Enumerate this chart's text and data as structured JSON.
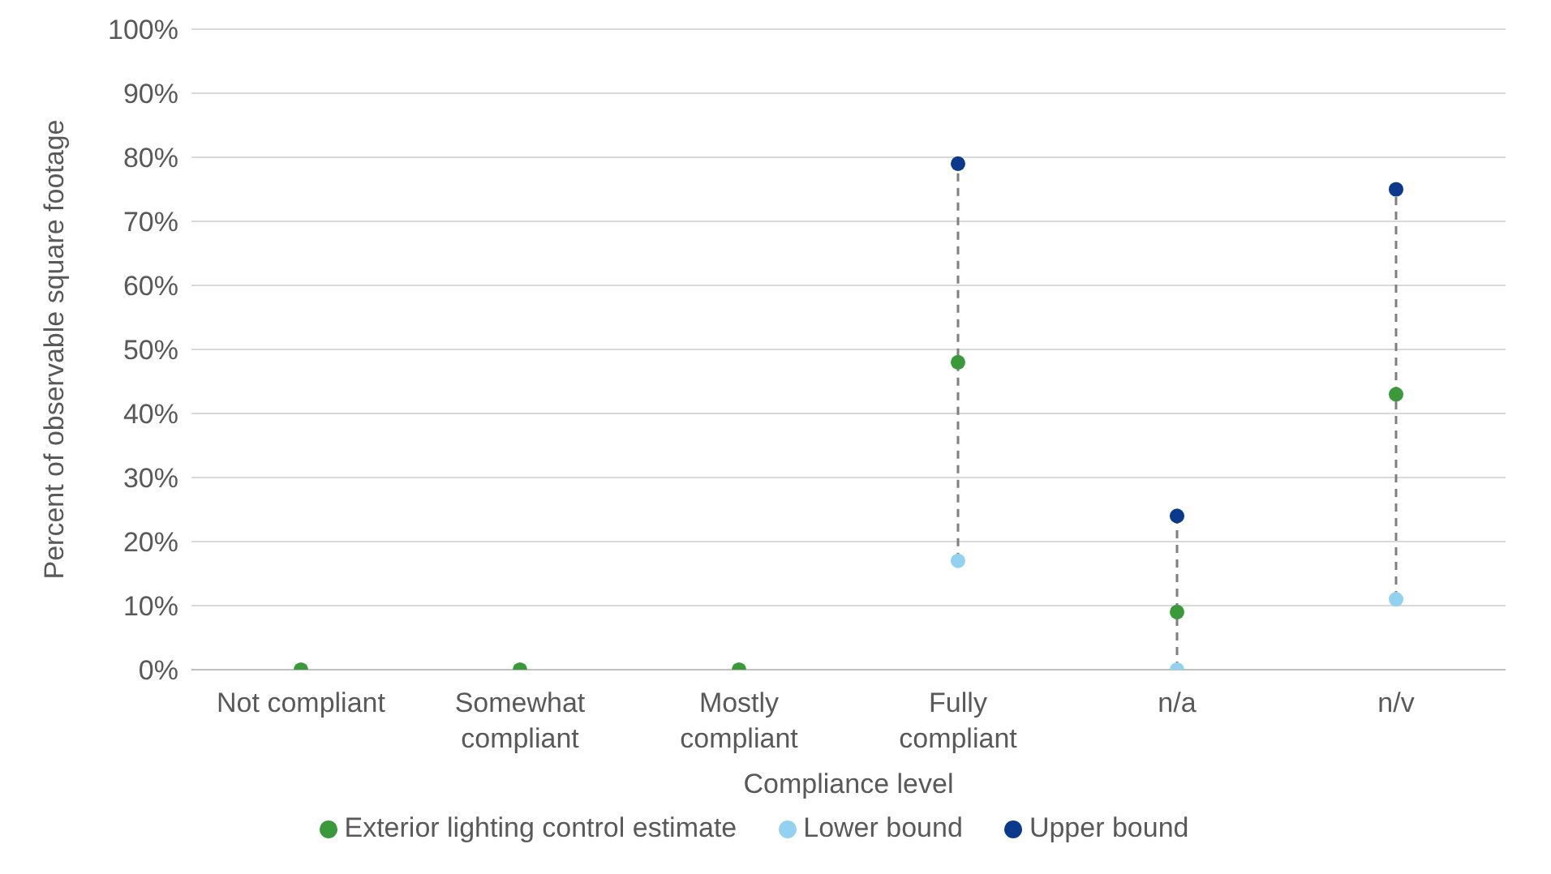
{
  "chart_data": {
    "type": "scatter",
    "xlabel": "Compliance level",
    "ylabel": "Percent of observable square footage",
    "categories": [
      "Not compliant",
      "Somewhat compliant",
      "Mostly compliant",
      "Fully compliant",
      "n/a",
      "n/v"
    ],
    "series": [
      {
        "type": "line",
        "color": "#7f7f7f",
        "line_style": "dashed",
        "marker": "none",
        "x": [
          "Fully compliant",
          "Fully compliant"
        ],
        "values": [
          17,
          79
        ]
      },
      {
        "type": "line",
        "color": "#7f7f7f",
        "line_style": "dashed",
        "marker": "none",
        "x": [
          "n/a",
          "n/a"
        ],
        "values": [
          0,
          24
        ]
      },
      {
        "type": "line",
        "color": "#7f7f7f",
        "line_style": "dashed",
        "marker": "none",
        "x": [
          "n/v",
          "n/v"
        ],
        "values": [
          11,
          75
        ]
      },
      {
        "name": "Exterior lighting control estimate",
        "color": "#3a9a3a",
        "values": [
          0,
          0,
          0,
          48,
          9,
          43
        ]
      },
      {
        "name": "Lower bound",
        "color": "#92d2f0",
        "values": [
          null,
          null,
          null,
          17,
          0,
          11
        ]
      },
      {
        "name": "Upper bound",
        "color": "#0b3a8c",
        "values": [
          null,
          null,
          null,
          79,
          24,
          75
        ]
      }
    ],
    "ylim": [
      0,
      100
    ],
    "yticks": [
      {
        "value": 0,
        "label": "0%"
      },
      {
        "value": 10,
        "label": "10%"
      },
      {
        "value": 20,
        "label": "20%"
      },
      {
        "value": 30,
        "label": "30%"
      },
      {
        "value": 40,
        "label": "40%"
      },
      {
        "value": 50,
        "label": "50%"
      },
      {
        "value": 60,
        "label": "60%"
      },
      {
        "value": 70,
        "label": "70%"
      },
      {
        "value": 80,
        "label": "80%"
      },
      {
        "value": 90,
        "label": "90%"
      },
      {
        "value": 100,
        "label": "100%"
      }
    ],
    "grid": "y",
    "legend": "bottom",
    "marker": "circle"
  }
}
